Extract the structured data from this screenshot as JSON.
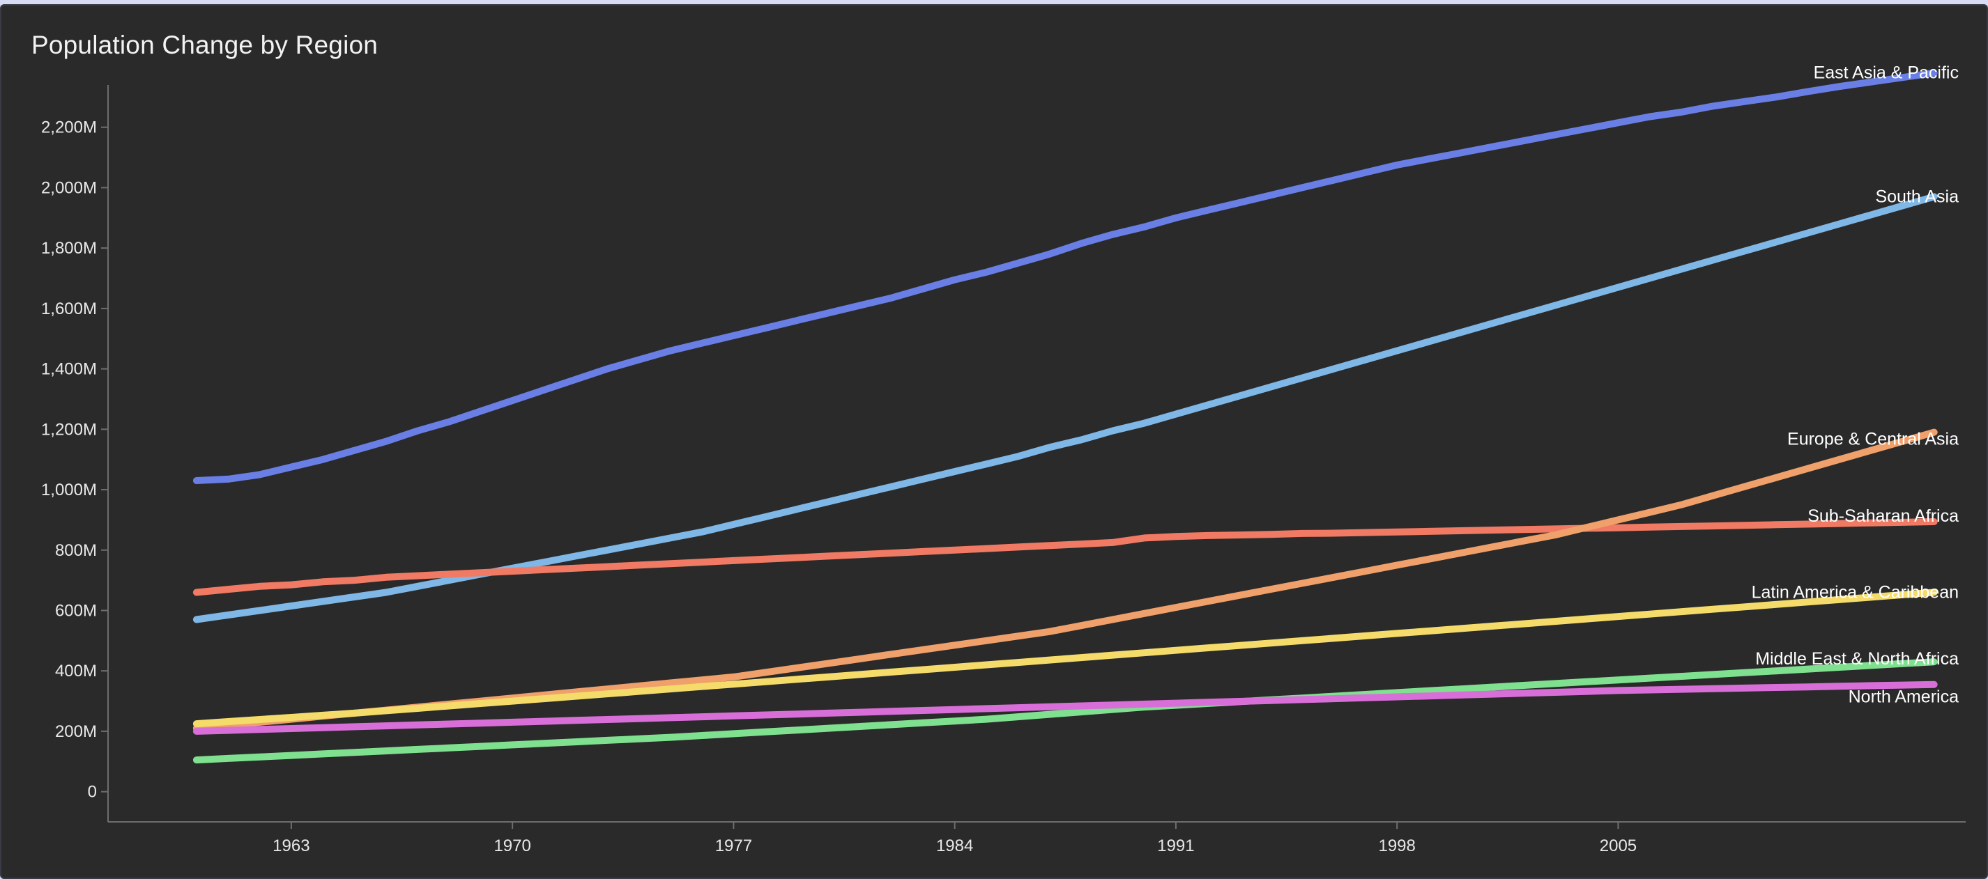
{
  "colors": {
    "background": "#2a2a2a",
    "text": "#e8e8e8",
    "axis": "#6e6e6e"
  },
  "chart_data": {
    "type": "line",
    "title": "Population Change by Region",
    "xlabel": "",
    "ylabel": "",
    "y_unit_suffix": "M",
    "x": [
      1960,
      1961,
      1962,
      1963,
      1964,
      1965,
      1966,
      1967,
      1968,
      1969,
      1970,
      1971,
      1972,
      1973,
      1974,
      1975,
      1976,
      1977,
      1978,
      1979,
      1980,
      1981,
      1982,
      1983,
      1984,
      1985,
      1986,
      1987,
      1988,
      1989,
      1990,
      1991,
      1992,
      1993,
      1994,
      1995,
      1996,
      1997,
      1998,
      1999,
      2000,
      2001,
      2002,
      2003,
      2004,
      2005,
      2006,
      2007,
      2008,
      2009,
      2010,
      2011,
      2012,
      2013,
      2014,
      2015
    ],
    "x_ticks": [
      1963,
      1970,
      1977,
      1984,
      1991,
      1998,
      2005
    ],
    "y_ticks": [
      0,
      200,
      400,
      600,
      800,
      1000,
      1200,
      1400,
      1600,
      1800,
      2000,
      2200
    ],
    "y_tick_labels": [
      "0",
      "200M",
      "400M",
      "600M",
      "800M",
      "1,000M",
      "1,200M",
      "1,400M",
      "1,600M",
      "1,800M",
      "2,000M",
      "2,200M"
    ],
    "xlim": [
      1957.2,
      2016.0
    ],
    "ylim": [
      -100,
      2340
    ],
    "grid": false,
    "legend": "none",
    "series": [
      {
        "name": "East Asia & Pacific",
        "color": "#6a7fe6",
        "values": [
          1030,
          1035,
          1050,
          1075,
          1100,
          1130,
          1160,
          1195,
          1225,
          1260,
          1295,
          1330,
          1365,
          1400,
          1430,
          1460,
          1485,
          1510,
          1535,
          1560,
          1585,
          1610,
          1635,
          1665,
          1695,
          1720,
          1750,
          1780,
          1815,
          1845,
          1870,
          1900,
          1925,
          1950,
          1975,
          2000,
          2025,
          2050,
          2075,
          2095,
          2115,
          2135,
          2155,
          2175,
          2195,
          2215,
          2235,
          2250,
          2270,
          2285,
          2300,
          2318,
          2335,
          2350,
          2365,
          2380
        ]
      },
      {
        "name": "South Asia",
        "color": "#7fb7e6",
        "values": [
          570,
          585,
          600,
          615,
          630,
          645,
          660,
          680,
          700,
          720,
          740,
          760,
          780,
          800,
          820,
          840,
          860,
          885,
          910,
          935,
          960,
          985,
          1010,
          1035,
          1060,
          1085,
          1110,
          1140,
          1165,
          1195,
          1220,
          1250,
          1280,
          1310,
          1340,
          1370,
          1400,
          1430,
          1460,
          1490,
          1520,
          1550,
          1580,
          1610,
          1640,
          1670,
          1700,
          1730,
          1760,
          1790,
          1820,
          1850,
          1880,
          1910,
          1940,
          1970
        ]
      },
      {
        "name": "Sub-Saharan Africa",
        "color": "#f07a63",
        "values": [
          660,
          670,
          680,
          685,
          695,
          700,
          710,
          715,
          720,
          725,
          730,
          735,
          740,
          745,
          750,
          755,
          760,
          765,
          770,
          775,
          780,
          785,
          790,
          795,
          800,
          805,
          810,
          815,
          820,
          825,
          840,
          845,
          848,
          850,
          852,
          855,
          856,
          858,
          860,
          862,
          864,
          866,
          868,
          870,
          872,
          874,
          876,
          878,
          880,
          882,
          884,
          886,
          888,
          890,
          892,
          894
        ]
      },
      {
        "name": "Europe & Central Asia",
        "color": "#f0a06a",
        "values": [
          210,
          220,
          230,
          240,
          250,
          260,
          270,
          280,
          290,
          300,
          310,
          320,
          330,
          340,
          350,
          360,
          370,
          380,
          395,
          410,
          425,
          440,
          455,
          470,
          485,
          500,
          515,
          530,
          550,
          570,
          590,
          610,
          630,
          650,
          670,
          690,
          710,
          730,
          750,
          770,
          790,
          810,
          830,
          850,
          875,
          900,
          925,
          950,
          980,
          1010,
          1040,
          1070,
          1100,
          1130,
          1160,
          1190
        ]
      },
      {
        "name": "Latin America & Caribbean",
        "color": "#f5dc6a",
        "values": [
          225,
          232,
          239,
          246,
          253,
          260,
          268,
          276,
          284,
          292,
          300,
          308,
          316,
          324,
          332,
          340,
          348,
          356,
          364,
          372,
          380,
          388,
          396,
          404,
          412,
          420,
          428,
          436,
          444,
          452,
          460,
          468,
          476,
          484,
          492,
          500,
          508,
          516,
          524,
          532,
          540,
          548,
          556,
          564,
          572,
          580,
          588,
          596,
          604,
          612,
          620,
          628,
          636,
          644,
          652,
          660
        ]
      },
      {
        "name": "Middle East & North Africa",
        "color": "#7fe08f",
        "values": [
          105,
          110,
          115,
          120,
          125,
          130,
          135,
          140,
          145,
          150,
          155,
          160,
          165,
          170,
          175,
          180,
          186,
          192,
          198,
          204,
          210,
          216,
          222,
          228,
          234,
          240,
          248,
          256,
          264,
          272,
          280,
          286,
          292,
          298,
          304,
          310,
          316,
          322,
          328,
          334,
          340,
          346,
          352,
          358,
          364,
          370,
          376,
          382,
          388,
          394,
          400,
          406,
          412,
          418,
          424,
          430
        ]
      },
      {
        "name": "North America",
        "color": "#d86ed8",
        "values": [
          200,
          203,
          206,
          209,
          212,
          215,
          218,
          221,
          224,
          227,
          230,
          233,
          236,
          239,
          242,
          245,
          248,
          251,
          254,
          257,
          260,
          263,
          266,
          269,
          272,
          275,
          278,
          281,
          284,
          287,
          290,
          293,
          296,
          299,
          302,
          305,
          308,
          311,
          314,
          317,
          320,
          323,
          326,
          329,
          332,
          335,
          337,
          339,
          341,
          343,
          345,
          347,
          349,
          351,
          353,
          355
        ]
      }
    ]
  }
}
